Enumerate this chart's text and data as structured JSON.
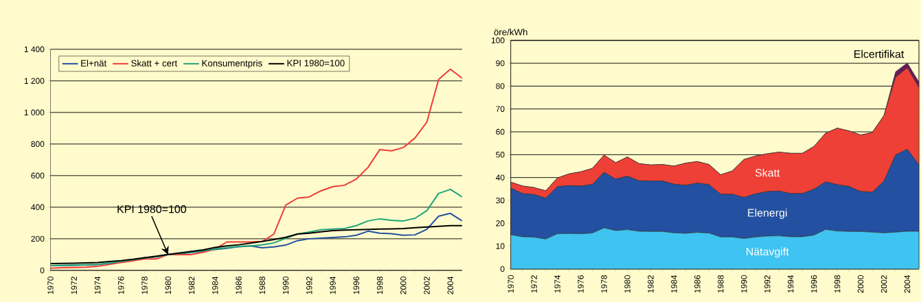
{
  "chart_data": [
    {
      "type": "line",
      "x": [
        1970,
        1971,
        1972,
        1973,
        1974,
        1975,
        1976,
        1977,
        1978,
        1979,
        1980,
        1981,
        1982,
        1983,
        1984,
        1985,
        1986,
        1987,
        1988,
        1989,
        1990,
        1991,
        1992,
        1993,
        1994,
        1995,
        1996,
        1997,
        1998,
        1999,
        2000,
        2001,
        2002,
        2003,
        2004,
        2005
      ],
      "series": [
        {
          "name": "El+nät",
          "color": "#2050a0",
          "values": [
            30,
            31,
            32,
            34,
            37,
            45,
            55,
            65,
            80,
            85,
            100,
            106,
            112,
            122,
            132,
            140,
            150,
            155,
            143,
            148,
            160,
            188,
            200,
            204,
            208,
            212,
            222,
            248,
            235,
            232,
            222,
            225,
            260,
            343,
            361,
            313
          ]
        },
        {
          "name": "Skatt + cert",
          "color": "#ee3a36",
          "values": [
            14,
            17,
            18,
            20,
            26,
            37,
            50,
            60,
            72,
            72,
            100,
            100,
            100,
            115,
            135,
            180,
            180,
            180,
            183,
            230,
            413,
            457,
            465,
            504,
            530,
            539,
            578,
            652,
            765,
            757,
            778,
            839,
            939,
            1209,
            1274,
            1217
          ]
        },
        {
          "name": "Konsumentpris",
          "color": "#1fa37a",
          "values": [
            30,
            31,
            33,
            35,
            38,
            46,
            57,
            67,
            78,
            86,
            100,
            108,
            115,
            125,
            135,
            143,
            152,
            155,
            161,
            174,
            204,
            230,
            243,
            257,
            261,
            265,
            283,
            313,
            326,
            317,
            313,
            330,
            378,
            487,
            513,
            465
          ]
        },
        {
          "name": "KPI 1980=100",
          "color": "#000000",
          "values": [
            43,
            44,
            45,
            47,
            50,
            56,
            62,
            70,
            80,
            90,
            101,
            110,
            120,
            130,
            145,
            155,
            162,
            172,
            183,
            195,
            209,
            230,
            235,
            244,
            252,
            255,
            257,
            259,
            261,
            263,
            265,
            270,
            274,
            279,
            283,
            283
          ]
        }
      ],
      "xlim": [
        1970,
        2005
      ],
      "xticks": [
        1970,
        1972,
        1974,
        1976,
        1978,
        1980,
        1982,
        1984,
        1986,
        1988,
        1990,
        1992,
        1994,
        1996,
        1998,
        2000,
        2002,
        2004
      ],
      "ylim": [
        0,
        1400
      ],
      "yticks": [
        0,
        200,
        400,
        600,
        800,
        {
          "value": 1000,
          "label": "1 000"
        },
        {
          "value": 1200,
          "label": "1 200"
        },
        {
          "value": 1400,
          "label": "1 400"
        }
      ],
      "grid": "y",
      "legend": "top left",
      "annotations": [
        {
          "text": "KPI 1980=100",
          "x": 1980,
          "y": 100
        }
      ]
    },
    {
      "type": "area",
      "stacked": true,
      "ylabel": "öre/kWh",
      "x": [
        1970,
        1971,
        1972,
        1973,
        1974,
        1975,
        1976,
        1977,
        1978,
        1979,
        1980,
        1981,
        1982,
        1983,
        1984,
        1985,
        1986,
        1987,
        1988,
        1989,
        1990,
        1991,
        1992,
        1993,
        1994,
        1995,
        1996,
        1997,
        1998,
        1999,
        2000,
        2001,
        2002,
        2003,
        2004,
        2005
      ],
      "series": [
        {
          "name": "Nätavgift",
          "color": "#3fc3f0",
          "values": [
            15.0,
            14.1,
            13.9,
            13.1,
            15.4,
            15.5,
            15.4,
            15.7,
            18.0,
            16.8,
            17.2,
            16.5,
            16.4,
            16.4,
            15.8,
            15.6,
            16.0,
            15.7,
            14.0,
            14.0,
            13.3,
            14.0,
            14.4,
            14.5,
            14.1,
            14.1,
            14.8,
            17.3,
            16.6,
            16.4,
            16.4,
            16.1,
            15.8,
            16.1,
            16.5,
            16.5
          ]
        },
        {
          "name": "Elenergi",
          "color": "#2350a0",
          "values": [
            20.5,
            18.9,
            18.7,
            17.9,
            20.6,
            21.0,
            20.9,
            21.3,
            24.3,
            22.5,
            23.4,
            22.1,
            22.1,
            22.1,
            21.3,
            21.0,
            21.6,
            21.2,
            18.7,
            18.7,
            18.0,
            18.9,
            19.5,
            19.6,
            18.9,
            18.9,
            20.1,
            20.8,
            20.3,
            19.7,
            17.5,
            17.5,
            22.6,
            33.8,
            35.9,
            29.1
          ]
        },
        {
          "name": "Skatt",
          "color": "#ee4036",
          "values": [
            2.5,
            3.3,
            3.0,
            3.2,
            3.8,
            5.1,
            6.2,
            7.0,
            7.5,
            7.2,
            8.4,
            7.5,
            7.0,
            7.2,
            7.9,
            9.7,
            9.4,
            8.8,
            8.5,
            10.2,
            16.6,
            16.5,
            16.5,
            17.0,
            17.6,
            17.6,
            18.7,
            21.3,
            24.7,
            24.3,
            24.7,
            26.1,
            28.7,
            33.9,
            35.6,
            33.7
          ]
        },
        {
          "name": "Elcertifikat",
          "color": "#6a1a5a",
          "values": [
            0,
            0,
            0,
            0,
            0,
            0,
            0,
            0,
            0,
            0,
            0,
            0,
            0,
            0,
            0,
            0,
            0,
            0,
            0,
            0,
            0,
            0,
            0,
            0,
            0,
            0,
            0,
            0,
            0,
            0,
            0,
            0,
            0,
            2.5,
            2.1,
            2.5
          ]
        }
      ],
      "xlim": [
        1970,
        2005
      ],
      "xticks": [
        1970,
        1972,
        1974,
        1976,
        1978,
        1980,
        1982,
        1984,
        1986,
        1988,
        1990,
        1992,
        1994,
        1996,
        1998,
        2000,
        2002,
        2004
      ],
      "ylim": [
        0,
        100
      ],
      "yticks": [
        0,
        10,
        20,
        30,
        40,
        50,
        60,
        70,
        80,
        90,
        100
      ],
      "grid": "y"
    }
  ]
}
